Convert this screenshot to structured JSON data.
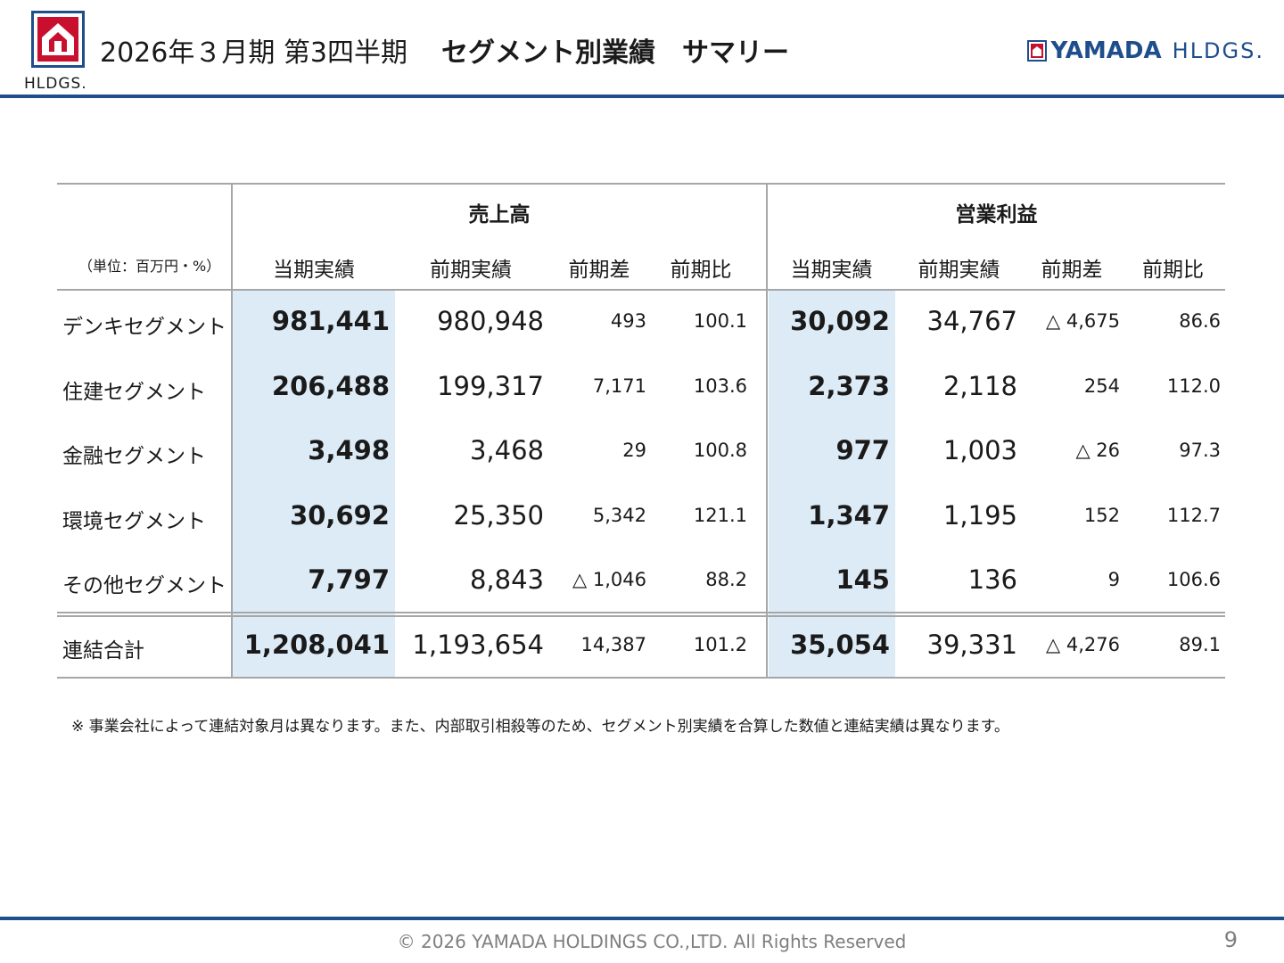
{
  "header": {
    "period": "2026年３月期 第3四半期",
    "title": "セグメント別業績　サマリー",
    "logo_left_text": "HLDGS.",
    "logo_right_brand": "YAMADA",
    "logo_right_sub": "HLDGS."
  },
  "table": {
    "unit": "（単位：百万円・%）",
    "groups": [
      "売上高",
      "営業利益"
    ],
    "columns": [
      "当期実績",
      "前期実績",
      "前期差",
      "前期比",
      "当期実績",
      "前期実績",
      "前期差",
      "前期比"
    ],
    "rows": [
      {
        "label": "デンキセグメント",
        "values": [
          "981,441",
          "980,948",
          "493",
          "100.1",
          "30,092",
          "34,767",
          "△ 4,675",
          "86.6"
        ]
      },
      {
        "label": "住建セグメント",
        "values": [
          "206,488",
          "199,317",
          "7,171",
          "103.6",
          "2,373",
          "2,118",
          "254",
          "112.0"
        ]
      },
      {
        "label": "金融セグメント",
        "values": [
          "3,498",
          "3,468",
          "29",
          "100.8",
          "977",
          "1,003",
          "△ 26",
          "97.3"
        ]
      },
      {
        "label": "環境セグメント",
        "values": [
          "30,692",
          "25,350",
          "5,342",
          "121.1",
          "1,347",
          "1,195",
          "152",
          "112.7"
        ]
      },
      {
        "label": "その他セグメント",
        "values": [
          "7,797",
          "8,843",
          "△ 1,046",
          "88.2",
          "145",
          "136",
          "9",
          "106.6"
        ]
      }
    ],
    "total": {
      "label": "連結合計",
      "values": [
        "1,208,041",
        "1,193,654",
        "14,387",
        "101.2",
        "35,054",
        "39,331",
        "△ 4,276",
        "89.1"
      ]
    }
  },
  "footnote": "※ 事業会社によって連結対象月は異なります。また、内部取引相殺等のため、セグメント別実績を合算した数値と連結実績は異なります。",
  "footer": {
    "copyright": "© 2026 YAMADA HOLDINGS CO.,LTD. All Rights Reserved",
    "page": "9"
  },
  "colors": {
    "brand_blue": "#1f4e8c",
    "logo_red": "#c8102e",
    "highlight": "#ddebf7"
  }
}
